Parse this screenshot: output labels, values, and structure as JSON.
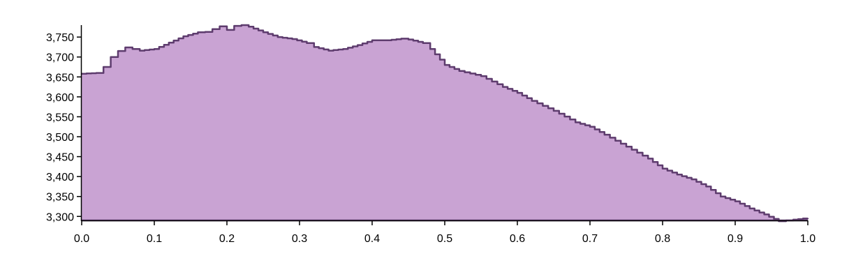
{
  "chart_data": {
    "type": "area",
    "title": "",
    "xlabel": "",
    "ylabel": "",
    "xlim": [
      0,
      1
    ],
    "ylim": [
      3290,
      3780
    ],
    "grid": false,
    "legend": "none",
    "colors": {
      "fill": "#c9a3d3",
      "line": "#5e3c6e",
      "axis": "#000000"
    },
    "x_ticks": [
      {
        "value": 0.0,
        "label": "0.0"
      },
      {
        "value": 0.1,
        "label": "0.1"
      },
      {
        "value": 0.2,
        "label": "0.2"
      },
      {
        "value": 0.3,
        "label": "0.3"
      },
      {
        "value": 0.4,
        "label": "0.4"
      },
      {
        "value": 0.5,
        "label": "0.5"
      },
      {
        "value": 0.6,
        "label": "0.6"
      },
      {
        "value": 0.7,
        "label": "0.7"
      },
      {
        "value": 0.8,
        "label": "0.8"
      },
      {
        "value": 0.9,
        "label": "0.9"
      },
      {
        "value": 1.0,
        "label": "1.0"
      }
    ],
    "y_ticks": [
      {
        "value": 3300,
        "label": "3,300"
      },
      {
        "value": 3350,
        "label": "3,350"
      },
      {
        "value": 3400,
        "label": "3,400"
      },
      {
        "value": 3450,
        "label": "3,450"
      },
      {
        "value": 3500,
        "label": "3,500"
      },
      {
        "value": 3550,
        "label": "3,550"
      },
      {
        "value": 3600,
        "label": "3,600"
      },
      {
        "value": 3650,
        "label": "3,650"
      },
      {
        "value": 3700,
        "label": "3,700"
      },
      {
        "value": 3750,
        "label": "3,750"
      }
    ],
    "series": [
      {
        "x": [
          0.0,
          0.02,
          0.03,
          0.04,
          0.05,
          0.06,
          0.07,
          0.08,
          0.1,
          0.12,
          0.14,
          0.16,
          0.17,
          0.18,
          0.19,
          0.2,
          0.21,
          0.22,
          0.23,
          0.25,
          0.27,
          0.29,
          0.31,
          0.32,
          0.34,
          0.36,
          0.38,
          0.4,
          0.42,
          0.44,
          0.45,
          0.47,
          0.48,
          0.5,
          0.52,
          0.55,
          0.58,
          0.6,
          0.62,
          0.65,
          0.68,
          0.7,
          0.72,
          0.75,
          0.78,
          0.8,
          0.82,
          0.84,
          0.86,
          0.88,
          0.9,
          0.92,
          0.94,
          0.96,
          0.97,
          0.98,
          1.0
        ],
        "values": [
          3658,
          3660,
          3675,
          3700,
          3715,
          3724,
          3720,
          3716,
          3720,
          3736,
          3752,
          3762,
          3763,
          3770,
          3777,
          3768,
          3778,
          3780,
          3776,
          3762,
          3750,
          3745,
          3735,
          3725,
          3716,
          3720,
          3730,
          3742,
          3742,
          3746,
          3744,
          3735,
          3720,
          3680,
          3665,
          3652,
          3625,
          3610,
          3590,
          3565,
          3536,
          3525,
          3505,
          3475,
          3445,
          3420,
          3405,
          3393,
          3375,
          3350,
          3338,
          3320,
          3305,
          3288,
          3290,
          3292,
          3296
        ]
      }
    ]
  }
}
